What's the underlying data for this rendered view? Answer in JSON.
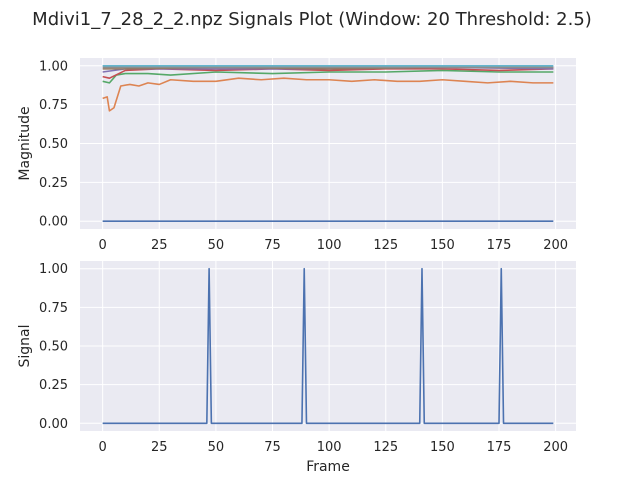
{
  "figure_title": "Mdivi1_7_28_2_2.npz Signals Plot (Window: 20 Threshold: 2.5)",
  "chart_data": [
    {
      "type": "line",
      "xlabel": "",
      "ylabel": "Magnitude",
      "xlim": [
        -10,
        209
      ],
      "ylim": [
        -0.05,
        1.05
      ],
      "xticks": [
        0,
        25,
        50,
        75,
        100,
        125,
        150,
        175,
        200
      ],
      "yticks": [
        0.0,
        0.25,
        0.5,
        0.75,
        1.0
      ],
      "xtick_labels": [
        "0",
        "25",
        "50",
        "75",
        "100",
        "125",
        "150",
        "175",
        "200"
      ],
      "ytick_labels": [
        "0.00",
        "0.25",
        "0.50",
        "0.75",
        "1.00"
      ],
      "grid": true,
      "series": [
        {
          "color": "#4c72b0",
          "x": [
            0,
            199
          ],
          "y": [
            0.0,
            0.0
          ]
        },
        {
          "color": "#dd8452",
          "x": [
            0,
            2,
            3,
            5,
            8,
            12,
            16,
            20,
            25,
            30,
            40,
            50,
            60,
            70,
            80,
            90,
            100,
            110,
            120,
            130,
            140,
            150,
            160,
            170,
            180,
            190,
            199
          ],
          "y": [
            0.79,
            0.8,
            0.71,
            0.73,
            0.87,
            0.88,
            0.87,
            0.89,
            0.88,
            0.91,
            0.9,
            0.9,
            0.92,
            0.91,
            0.92,
            0.91,
            0.91,
            0.9,
            0.91,
            0.9,
            0.9,
            0.91,
            0.9,
            0.89,
            0.9,
            0.89,
            0.89
          ]
        },
        {
          "color": "#55a868",
          "x": [
            0,
            3,
            6,
            10,
            20,
            30,
            50,
            75,
            100,
            125,
            150,
            175,
            199
          ],
          "y": [
            0.9,
            0.89,
            0.94,
            0.95,
            0.95,
            0.94,
            0.96,
            0.95,
            0.96,
            0.96,
            0.97,
            0.96,
            0.96
          ]
        },
        {
          "color": "#c44e52",
          "x": [
            0,
            3,
            10,
            25,
            50,
            75,
            100,
            125,
            150,
            175,
            199
          ],
          "y": [
            0.93,
            0.92,
            0.97,
            0.98,
            0.97,
            0.98,
            0.97,
            0.98,
            0.98,
            0.97,
            0.98
          ]
        },
        {
          "color": "#8172b3",
          "x": [
            0,
            10,
            50,
            100,
            150,
            199
          ],
          "y": [
            0.96,
            0.98,
            0.98,
            0.98,
            0.99,
            0.98
          ]
        },
        {
          "color": "#937860",
          "x": [
            0,
            10,
            50,
            100,
            150,
            199
          ],
          "y": [
            0.98,
            0.98,
            0.99,
            0.98,
            0.99,
            0.99
          ]
        },
        {
          "color": "#8c8c8c",
          "x": [
            0,
            50,
            100,
            150,
            199
          ],
          "y": [
            0.99,
            0.99,
            0.99,
            0.99,
            0.99
          ]
        },
        {
          "color": "#64b5cd",
          "x": [
            0,
            50,
            100,
            150,
            199
          ],
          "y": [
            1.0,
            1.0,
            1.0,
            1.0,
            1.0
          ]
        }
      ]
    },
    {
      "type": "line",
      "xlabel": "Frame",
      "ylabel": "Signal",
      "xlim": [
        -10,
        209
      ],
      "ylim": [
        -0.05,
        1.05
      ],
      "xticks": [
        0,
        25,
        50,
        75,
        100,
        125,
        150,
        175,
        200
      ],
      "yticks": [
        0.0,
        0.25,
        0.5,
        0.75,
        1.0
      ],
      "xtick_labels": [
        "0",
        "25",
        "50",
        "75",
        "100",
        "125",
        "150",
        "175",
        "200"
      ],
      "ytick_labels": [
        "0.00",
        "0.25",
        "0.50",
        "0.75",
        "1.00"
      ],
      "grid": true,
      "series": [
        {
          "color": "#4c72b0",
          "x": [
            0,
            46,
            47,
            48,
            88,
            89,
            90,
            140,
            141,
            142,
            175,
            176,
            177,
            199
          ],
          "y": [
            0,
            0,
            1,
            0,
            0,
            1,
            0,
            0,
            1,
            0,
            0,
            1,
            0,
            0
          ]
        }
      ]
    }
  ]
}
